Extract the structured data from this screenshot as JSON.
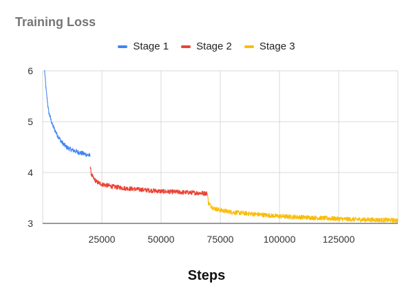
{
  "chart_data": {
    "type": "line",
    "title": "Training Loss",
    "xlabel": "Steps",
    "ylabel": "",
    "xlim": [
      0,
      150000
    ],
    "ylim": [
      3,
      6
    ],
    "xticks": [
      25000,
      50000,
      75000,
      100000,
      125000
    ],
    "yticks": [
      3,
      4,
      5,
      6
    ],
    "grid": true,
    "legend_position": "top-center",
    "series": [
      {
        "name": "Stage 1",
        "color": "#4285F4",
        "x": [
          800,
          1500,
          2500,
          4000,
          6000,
          8000,
          10000,
          12000,
          15000,
          18000,
          20000
        ],
        "y": [
          6.0,
          5.6,
          5.2,
          4.95,
          4.75,
          4.6,
          4.5,
          4.45,
          4.4,
          4.36,
          4.33
        ]
      },
      {
        "name": "Stage 2",
        "color": "#EA4335",
        "x": [
          20000,
          20500,
          21500,
          23000,
          25000,
          30000,
          35000,
          40000,
          45000,
          50000,
          55000,
          60000,
          65000,
          69500
        ],
        "y": [
          4.15,
          3.97,
          3.88,
          3.81,
          3.77,
          3.72,
          3.69,
          3.67,
          3.65,
          3.63,
          3.62,
          3.61,
          3.6,
          3.59
        ]
      },
      {
        "name": "Stage 3",
        "color": "#FBBC04",
        "x": [
          69500,
          70000,
          72000,
          75000,
          80000,
          90000,
          100000,
          110000,
          120000,
          130000,
          140000,
          150000
        ],
        "y": [
          3.6,
          3.4,
          3.3,
          3.26,
          3.22,
          3.18,
          3.14,
          3.12,
          3.1,
          3.08,
          3.07,
          3.06
        ]
      }
    ]
  }
}
